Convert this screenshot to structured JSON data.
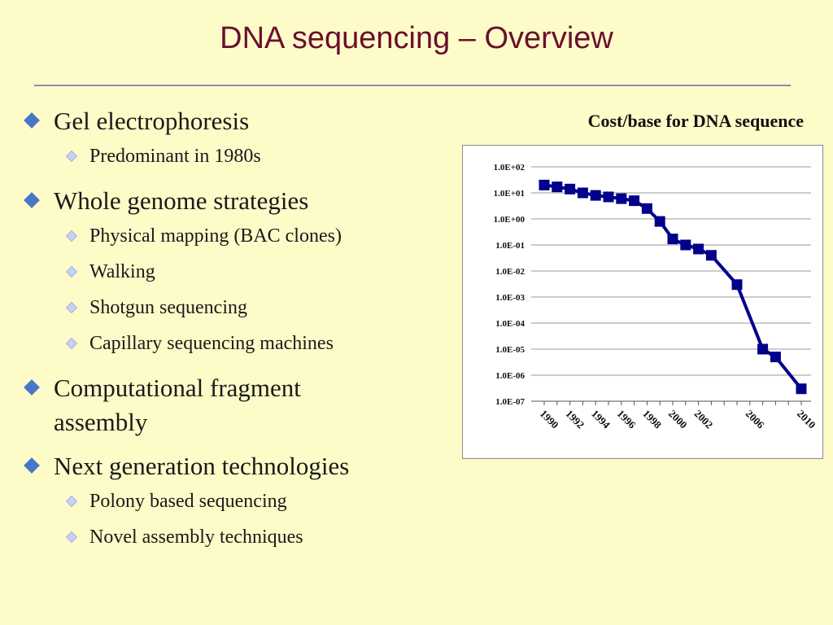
{
  "slide": {
    "title": "DNA sequencing – Overview"
  },
  "bullets": [
    {
      "text": "Gel electrophoresis",
      "subs": [
        "Predominant in 1980s"
      ]
    },
    {
      "text": "Whole genome strategies",
      "subs": [
        "Physical mapping (BAC clones)",
        "Walking",
        "Shotgun sequencing",
        "Capillary sequencing machines"
      ]
    },
    {
      "text": "Computational fragment assembly",
      "subs": []
    },
    {
      "text": "Next generation technologies",
      "subs": [
        "Polony based sequencing",
        "Novel assembly techniques"
      ]
    }
  ],
  "chart_title": "Cost/base for DNA sequence",
  "chart_data": {
    "type": "line",
    "title": "Cost/base for DNA sequence",
    "xlabel": "",
    "ylabel": "",
    "scale_y": "log",
    "ylim": [
      1e-07,
      100
    ],
    "grid": true,
    "y_ticks": [
      "1.0E+02",
      "1.0E+01",
      "1.0E+00",
      "1.0E-01",
      "1.0E-02",
      "1.0E-03",
      "1.0E-04",
      "1.0E-05",
      "1.0E-06",
      "1.0E-07"
    ],
    "x_ticks": [
      "1990",
      "1992",
      "1994",
      "1996",
      "1998",
      "2000",
      "2002",
      "2006",
      "2010"
    ],
    "series": [
      {
        "color": "#00008b",
        "points": [
          {
            "x": "1990",
            "y": 20
          },
          {
            "x": "1991",
            "y": 17
          },
          {
            "x": "1992",
            "y": 14
          },
          {
            "x": "1993",
            "y": 10
          },
          {
            "x": "1994",
            "y": 8
          },
          {
            "x": "1995",
            "y": 7
          },
          {
            "x": "1996",
            "y": 6
          },
          {
            "x": "1997",
            "y": 5
          },
          {
            "x": "1998",
            "y": 2.5
          },
          {
            "x": "1999",
            "y": 0.8
          },
          {
            "x": "2000",
            "y": 0.17
          },
          {
            "x": "2001",
            "y": 0.1
          },
          {
            "x": "2002",
            "y": 0.07
          },
          {
            "x": "2003",
            "y": 0.04
          },
          {
            "x": "2005",
            "y": 0.003
          },
          {
            "x": "2007",
            "y": 1e-05
          },
          {
            "x": "2008",
            "y": 5e-06
          },
          {
            "x": "2010",
            "y": 3e-07
          }
        ]
      }
    ]
  }
}
